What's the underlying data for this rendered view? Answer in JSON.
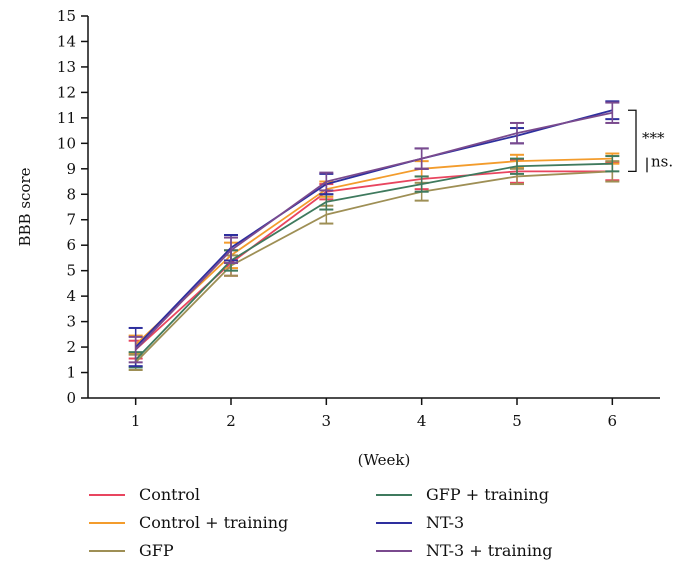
{
  "chart_data": {
    "type": "line",
    "xlabel": "(Week)",
    "ylabel": "BBB score",
    "x": [
      1,
      2,
      3,
      4,
      5,
      6
    ],
    "xlim": [
      0.5,
      6.5
    ],
    "ylim": [
      0,
      15
    ],
    "yticks": [
      0,
      1,
      2,
      3,
      4,
      5,
      6,
      7,
      8,
      9,
      10,
      11,
      12,
      13,
      14,
      15
    ],
    "grid": false,
    "legend_position": "bottom",
    "series": [
      {
        "name": "Control",
        "color": "#e8455f",
        "values": [
          1.9,
          5.3,
          8.1,
          8.6,
          8.9,
          8.9
        ],
        "errors": [
          0.35,
          0.5,
          0.3,
          0.4,
          0.45,
          0.35
        ]
      },
      {
        "name": "Control + training",
        "color": "#f39c2c",
        "values": [
          2.1,
          5.6,
          8.2,
          9.0,
          9.3,
          9.4
        ],
        "errors": [
          0.35,
          0.5,
          0.3,
          0.3,
          0.25,
          0.2
        ]
      },
      {
        "name": "GFP",
        "color": "#9e8f55",
        "values": [
          1.4,
          5.2,
          7.2,
          8.1,
          8.7,
          8.9
        ],
        "errors": [
          0.3,
          0.4,
          0.35,
          0.35,
          0.3,
          0.4
        ]
      },
      {
        "name": "GFP + training",
        "color": "#3f7a5e",
        "values": [
          1.5,
          5.4,
          7.7,
          8.4,
          9.1,
          9.2
        ],
        "errors": [
          0.3,
          0.4,
          0.3,
          0.3,
          0.3,
          0.3
        ]
      },
      {
        "name": "NT-3",
        "color": "#2e2f9e",
        "values": [
          2.0,
          5.9,
          8.4,
          9.4,
          10.3,
          11.3
        ],
        "errors": [
          0.75,
          0.5,
          0.4,
          0.4,
          0.3,
          0.35
        ]
      },
      {
        "name": "NT-3 + training",
        "color": "#7a4a8e",
        "values": [
          1.9,
          5.8,
          8.5,
          9.4,
          10.4,
          11.2
        ],
        "errors": [
          0.5,
          0.5,
          0.35,
          0.4,
          0.4,
          0.4
        ]
      }
    ],
    "annotations": [
      {
        "label": "***",
        "y_from": 11.3,
        "y_to": 8.9
      },
      {
        "label": "ns.",
        "y_from": 9.4,
        "y_to": 8.9
      }
    ]
  }
}
